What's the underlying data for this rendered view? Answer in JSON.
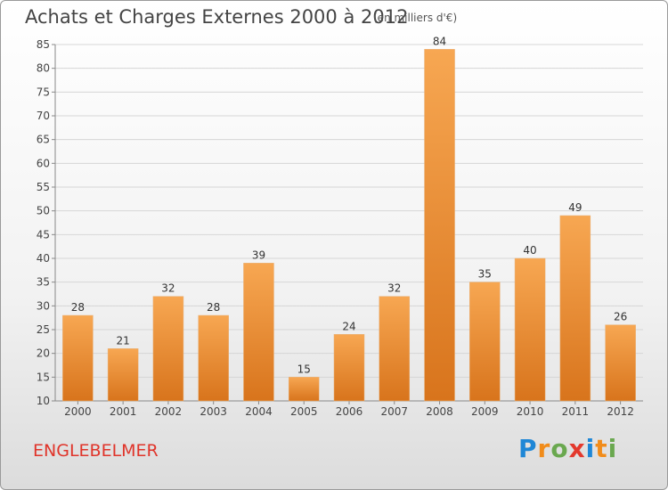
{
  "header": {
    "title": "Achats et Charges Externes 2000 à 2012",
    "unit": "(en milliers d'€)"
  },
  "footer": {
    "commune": "ENGLEBELMER",
    "logo_text": "Proxiti"
  },
  "colors": {
    "bar_light": "#f7a752",
    "bar_dark": "#d8741c",
    "commune_text": "#e0342a",
    "logo_letters": [
      "#1f87d6",
      "#f18c1a",
      "#6aa84f",
      "#e3392d",
      "#1f87d6",
      "#f18c1a",
      "#6aa84f"
    ]
  },
  "chart_data": {
    "type": "bar",
    "categories": [
      "2000",
      "2001",
      "2002",
      "2003",
      "2004",
      "2005",
      "2006",
      "2007",
      "2008",
      "2009",
      "2010",
      "2011",
      "2012"
    ],
    "values": [
      28,
      21,
      32,
      28,
      39,
      15,
      24,
      32,
      84,
      35,
      40,
      49,
      26
    ],
    "ylim": [
      10,
      85
    ],
    "yticks": [
      10,
      15,
      20,
      25,
      30,
      35,
      40,
      45,
      50,
      55,
      60,
      65,
      70,
      75,
      80,
      85
    ],
    "grid": true,
    "data_labels": true
  }
}
